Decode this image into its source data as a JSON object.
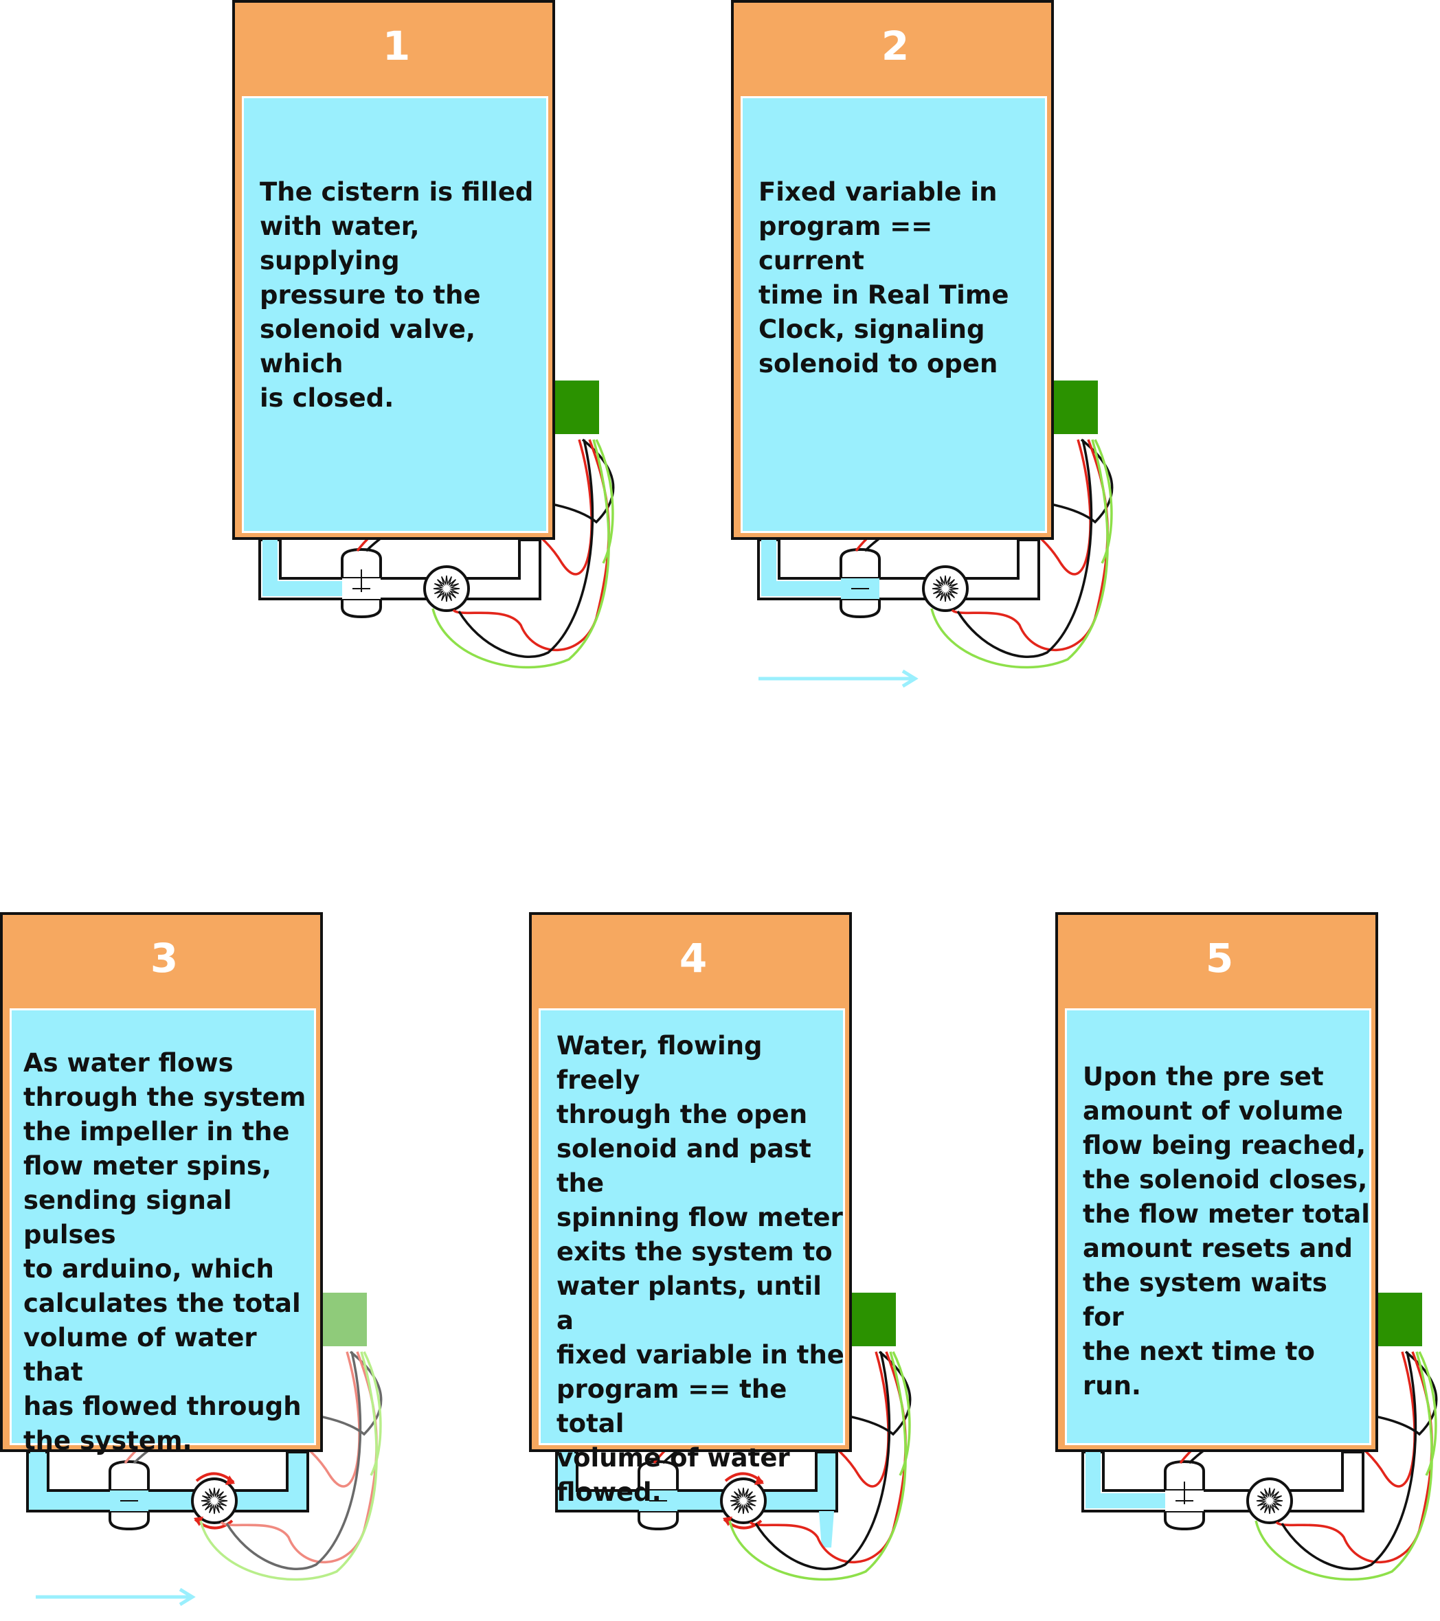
{
  "colors": {
    "tank": "#f6a860",
    "water": "#9aeffd",
    "arduino": "#2b9200",
    "arduino_faded": "#8fcb7a",
    "wire_red": "#e3251b",
    "wire_black": "#111111",
    "wire_green": "#8ee04a",
    "flow_arrow": "#9aeffd",
    "spin_arrow": "#e3251b"
  },
  "panels": [
    {
      "number": "1",
      "text": "The cistern is filled\nwith water, supplying\npressure to the\nsolenoid valve, which\nis closed.",
      "valve_open": false,
      "pipe_water": false,
      "impeller_spinning": false,
      "outflow": false,
      "faded": false,
      "flow_arrow": false
    },
    {
      "number": "2",
      "text": "Fixed variable in\nprogram == current\ntime in Real Time\nClock, signaling\nsolenoid to open",
      "valve_open": true,
      "pipe_water": false,
      "impeller_spinning": false,
      "outflow": false,
      "faded": false,
      "flow_arrow": true
    },
    {
      "number": "3",
      "text": "As water flows\nthrough the system\nthe impeller in the\nflow meter spins,\nsending signal pulses\nto arduino, which\ncalculates the total\nvolume of water that\nhas flowed through\nthe system.",
      "valve_open": true,
      "pipe_water": true,
      "impeller_spinning": true,
      "outflow": false,
      "faded": true,
      "flow_arrow": true
    },
    {
      "number": "4",
      "text": "Water, flowing freely\nthrough the open\nsolenoid and past the\nspinning flow meter\nexits the system to\nwater plants, until a\nfixed variable in the\nprogram == the total\nvolume of water\nflowed.",
      "valve_open": true,
      "pipe_water": true,
      "impeller_spinning": true,
      "outflow": true,
      "faded": false,
      "flow_arrow": false
    },
    {
      "number": "5",
      "text": "Upon the pre set\namount of volume\nflow being reached,\nthe solenoid closes,\nthe flow meter total\namount resets and\nthe system waits for\nthe next time to run.",
      "valve_open": false,
      "pipe_water": false,
      "impeller_spinning": false,
      "outflow": false,
      "faded": false,
      "flow_arrow": false
    }
  ]
}
